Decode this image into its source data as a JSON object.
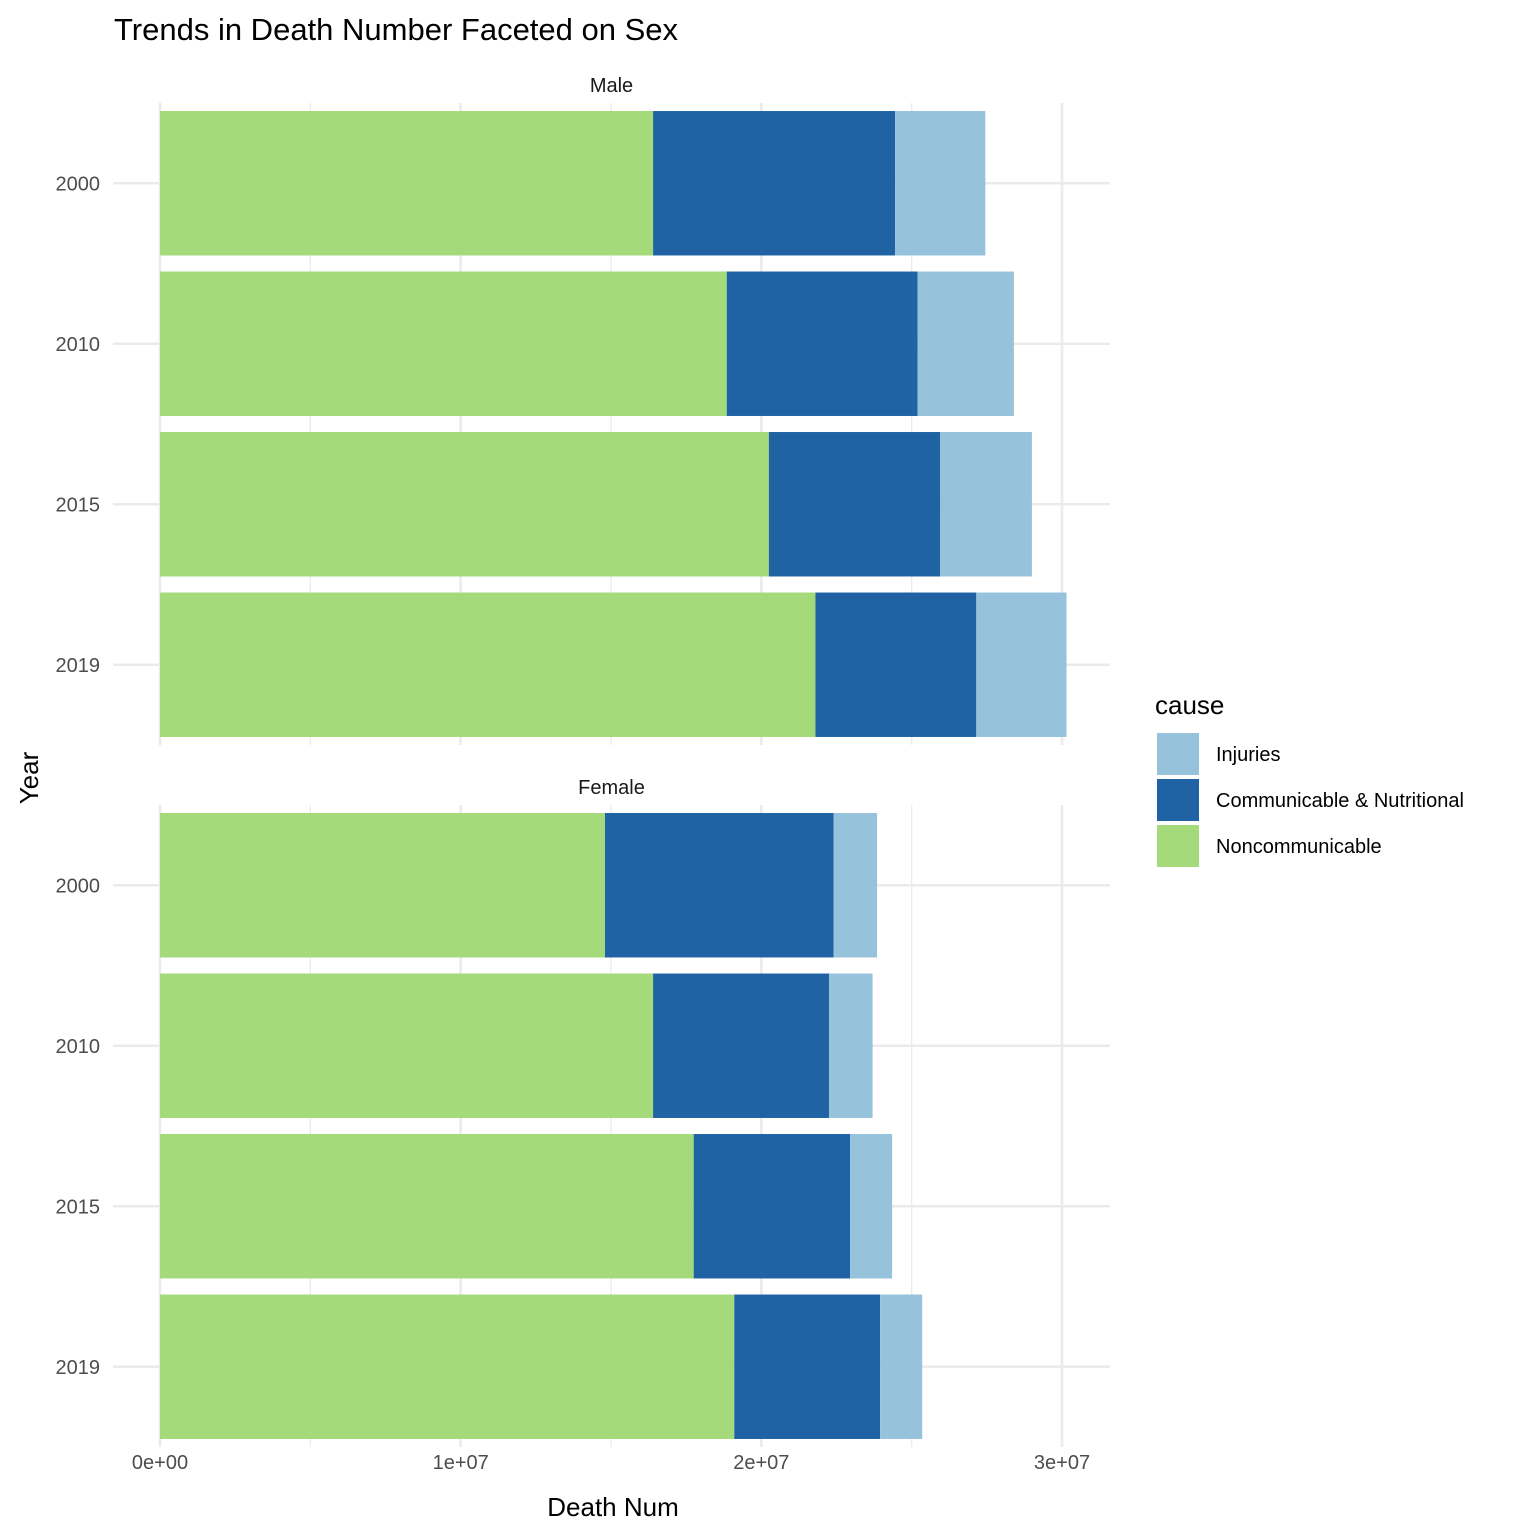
{
  "chart_data": {
    "type": "bar",
    "orientation": "horizontal",
    "stacked": true,
    "title": "Trends in Death Number Faceted on Sex",
    "xlabel": "Death Num",
    "ylabel": "Year",
    "xlim": [
      0,
      31500000
    ],
    "x_ticks": [
      0,
      10000000,
      20000000,
      30000000
    ],
    "x_tick_labels": [
      "0e+00",
      "1e+07",
      "2e+07",
      "3e+07"
    ],
    "categories": [
      "2000",
      "2010",
      "2015",
      "2019"
    ],
    "grid": true,
    "legend": {
      "title": "cause",
      "position": "right",
      "items": [
        {
          "label": "Injuries",
          "color": "#97c2db"
        },
        {
          "label": "Communicable & Nutritional",
          "color": "#1f63a5"
        },
        {
          "label": "Noncommunicable",
          "color": "#a5da7a"
        }
      ]
    },
    "stack_order": [
      "Noncommunicable",
      "Communicable & Nutritional",
      "Injuries"
    ],
    "facets": [
      {
        "label": "Male",
        "series": [
          {
            "name": "Noncommunicable",
            "values": [
              16400000,
              18850000,
              20250000,
              21800000
            ]
          },
          {
            "name": "Communicable & Nutritional",
            "values": [
              8050000,
              6350000,
              5700000,
              5350000
            ]
          },
          {
            "name": "Injuries",
            "values": [
              3000000,
              3200000,
              3050000,
              3000000
            ]
          }
        ]
      },
      {
        "label": "Female",
        "series": [
          {
            "name": "Noncommunicable",
            "values": [
              14800000,
              16400000,
              17750000,
              19100000
            ]
          },
          {
            "name": "Communicable & Nutritional",
            "values": [
              7600000,
              5850000,
              5200000,
              4850000
            ]
          },
          {
            "name": "Injuries",
            "values": [
              1450000,
              1450000,
              1400000,
              1400000
            ]
          }
        ]
      }
    ]
  }
}
